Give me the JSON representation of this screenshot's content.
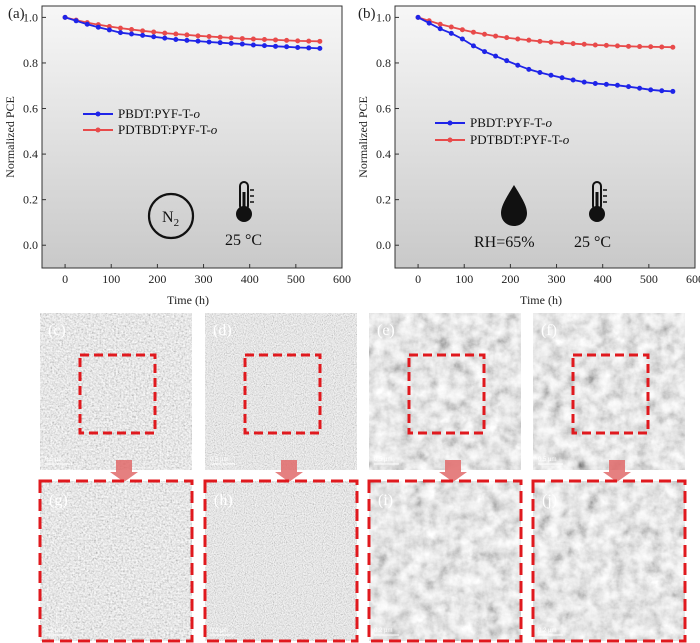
{
  "chart_data": [
    {
      "type": "line",
      "panel": "(a)",
      "xlabel": "Time (h)",
      "ylabel": "Normalized PCE",
      "xlim": [
        -50,
        600
      ],
      "ylim": [
        -0.1,
        1.05
      ],
      "xticks": [
        0,
        100,
        200,
        300,
        400,
        500,
        600
      ],
      "yticks": [
        0.0,
        0.2,
        0.4,
        0.6,
        0.8,
        1.0
      ],
      "legend": "center-left",
      "annotations": [
        "N2",
        "25 °C"
      ],
      "series": [
        {
          "name": "PBDT:PYF-T-o",
          "name_main": "PBDT:PYF-T-",
          "name_italic": "o",
          "color": "#1f24e8",
          "x": [
            0,
            24,
            48,
            72,
            96,
            120,
            144,
            168,
            192,
            216,
            240,
            264,
            288,
            312,
            336,
            360,
            384,
            408,
            432,
            456,
            480,
            504,
            528,
            552
          ],
          "y": [
            1.0,
            0.985,
            0.97,
            0.957,
            0.945,
            0.933,
            0.927,
            0.921,
            0.915,
            0.909,
            0.903,
            0.899,
            0.896,
            0.892,
            0.889,
            0.886,
            0.883,
            0.879,
            0.876,
            0.873,
            0.871,
            0.868,
            0.866,
            0.864
          ]
        },
        {
          "name": "PDTBDT:PYF-T-o",
          "name_main": "PDTBDT:PYF-T-",
          "name_italic": "o",
          "color": "#e84a4a",
          "x": [
            0,
            24,
            48,
            72,
            96,
            120,
            144,
            168,
            192,
            216,
            240,
            264,
            288,
            312,
            336,
            360,
            384,
            408,
            432,
            456,
            480,
            504,
            528,
            552
          ],
          "y": [
            1.0,
            0.988,
            0.977,
            0.968,
            0.96,
            0.953,
            0.947,
            0.941,
            0.936,
            0.931,
            0.927,
            0.923,
            0.919,
            0.916,
            0.913,
            0.91,
            0.907,
            0.905,
            0.903,
            0.901,
            0.899,
            0.897,
            0.896,
            0.895
          ]
        }
      ]
    },
    {
      "type": "line",
      "panel": "(b)",
      "xlabel": "Time (h)",
      "ylabel": "Normalized PCE",
      "xlim": [
        -50,
        600
      ],
      "ylim": [
        -0.1,
        1.05
      ],
      "xticks": [
        0,
        100,
        200,
        300,
        400,
        500,
        600
      ],
      "yticks": [
        0.0,
        0.2,
        0.4,
        0.6,
        0.8,
        1.0
      ],
      "legend": "center",
      "annotations": [
        "RH=65%",
        "25 °C"
      ],
      "series": [
        {
          "name": "PBDT:PYF-T-o",
          "name_main": "PBDT:PYF-T-",
          "name_italic": "o",
          "color": "#1f24e8",
          "x": [
            0,
            24,
            48,
            72,
            96,
            120,
            144,
            168,
            192,
            216,
            240,
            264,
            288,
            312,
            336,
            360,
            384,
            408,
            432,
            456,
            480,
            504,
            528,
            552
          ],
          "y": [
            1.0,
            0.975,
            0.95,
            0.93,
            0.905,
            0.875,
            0.85,
            0.83,
            0.81,
            0.79,
            0.772,
            0.758,
            0.746,
            0.735,
            0.725,
            0.716,
            0.71,
            0.706,
            0.702,
            0.696,
            0.689,
            0.682,
            0.678,
            0.675
          ]
        },
        {
          "name": "PDTBDT:PYF-T-o",
          "name_main": "PDTBDT:PYF-T-",
          "name_italic": "o",
          "color": "#e84a4a",
          "x": [
            0,
            24,
            48,
            72,
            96,
            120,
            144,
            168,
            192,
            216,
            240,
            264,
            288,
            312,
            336,
            360,
            384,
            408,
            432,
            456,
            480,
            504,
            528,
            552
          ],
          "y": [
            1.0,
            0.985,
            0.97,
            0.958,
            0.946,
            0.935,
            0.926,
            0.918,
            0.911,
            0.905,
            0.9,
            0.895,
            0.891,
            0.888,
            0.885,
            0.882,
            0.879,
            0.877,
            0.875,
            0.873,
            0.872,
            0.871,
            0.87,
            0.869
          ]
        }
      ]
    }
  ],
  "panel_labels_top": [
    "(a)",
    "(b)"
  ],
  "afm": {
    "top": [
      {
        "label": "(c)",
        "scale": "0.5 µm"
      },
      {
        "label": "(d)",
        "scale": "0.5 µm"
      },
      {
        "label": "(e)",
        "scale": "0.5 µm"
      },
      {
        "label": "(f)",
        "scale": "0.5 µm"
      }
    ],
    "bottom": [
      {
        "label": "(g)",
        "scale": "0.2 µm"
      },
      {
        "label": "(h)",
        "scale": "0.2 µm"
      },
      {
        "label": "(i)",
        "scale": "0.2 µm"
      },
      {
        "label": "(j)",
        "scale": "0.2 µm"
      }
    ]
  },
  "colors": {
    "blue": "#1f24e8",
    "red": "#e84a4a",
    "box": "#e0191e",
    "arrow": "#e06a6a"
  }
}
